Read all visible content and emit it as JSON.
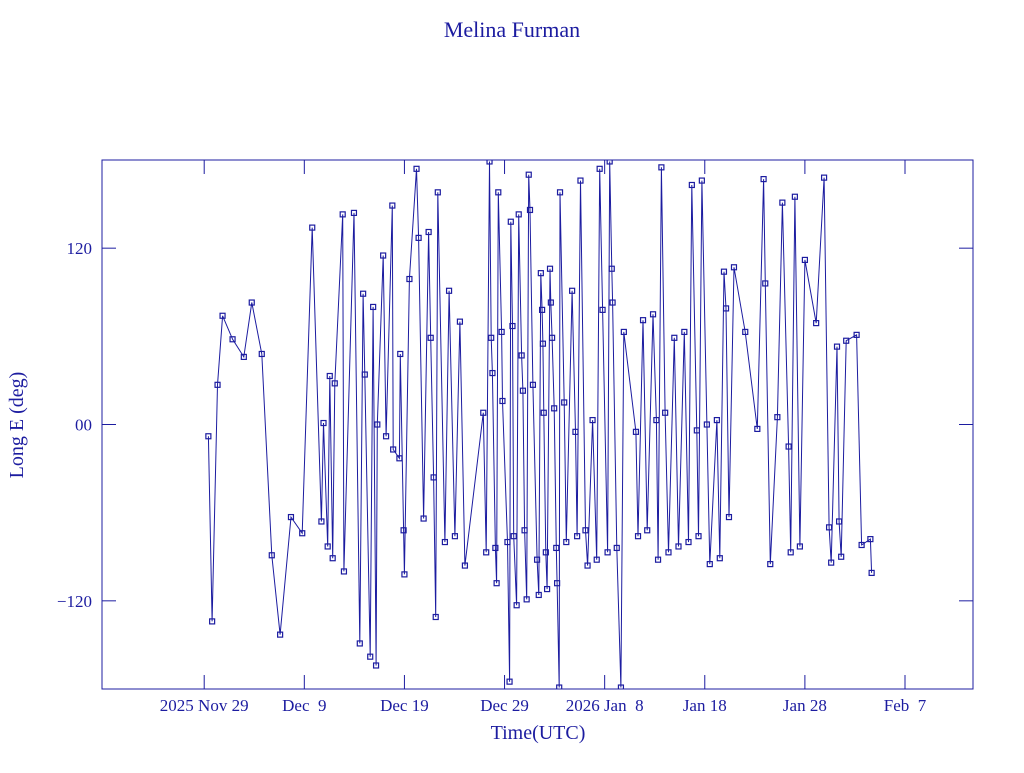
{
  "chart_data": {
    "type": "line",
    "title": "Melina Furman",
    "x_label": "Time(UTC)",
    "y_label": "Long E (deg)",
    "color": "#1c1ca0",
    "marker": "square",
    "x": [
      "2025-11-29T10:00",
      "2025-11-29T19:00",
      "2025-11-30T08:00",
      "2025-11-30T20:00",
      "2025-12-01T20:00",
      "2025-12-02T23:00",
      "2025-12-03T18:00",
      "2025-12-04T18:00",
      "2025-12-05T18:00",
      "2025-12-06T14:00",
      "2025-12-07T16:00",
      "2025-12-08T19:00",
      "2025-12-09T19:00",
      "2025-12-10T17:00",
      "2025-12-10T22:00",
      "2025-12-11T08:00",
      "2025-12-11T13:00",
      "2025-12-11T20:00",
      "2025-12-12T01:00",
      "2025-12-12T20:00",
      "2025-12-12T23:00",
      "2025-12-13T23:00",
      "2025-12-14T13:00",
      "2025-12-14T21:00",
      "2025-12-15T01:00",
      "2025-12-15T14:00",
      "2025-12-15T21:00",
      "2025-12-16T04:00",
      "2025-12-16T07:00",
      "2025-12-16T21:00",
      "2025-12-17T04:00",
      "2025-12-17T19:00",
      "2025-12-17T21:00",
      "2025-12-18T12:00",
      "2025-12-18T14:00",
      "2025-12-18T22:00",
      "2025-12-19T00:00",
      "2025-12-19T12:00",
      "2025-12-20T05:00",
      "2025-12-20T10:00",
      "2025-12-20T22:00",
      "2025-12-21T10:00",
      "2025-12-21T15:00",
      "2025-12-21T22:00",
      "2025-12-22T03:00",
      "2025-12-22T08:00",
      "2025-12-23T01:00",
      "2025-12-23T11:00",
      "2025-12-24T01:00",
      "2025-12-24T13:00",
      "2025-12-25T01:00",
      "2025-12-26T21:00",
      "2025-12-27T04:00",
      "2025-12-27T12:00",
      "2025-12-27T16:00",
      "2025-12-27T19:00",
      "2025-12-28T02:00",
      "2025-12-28T05:00",
      "2025-12-28T09:00",
      "2025-12-28T17:00",
      "2025-12-28T19:00",
      "2025-12-29T07:00",
      "2025-12-29T12:00",
      "2025-12-29T15:00",
      "2025-12-29T19:00",
      "2025-12-29T22:00",
      "2025-12-30T05:00",
      "2025-12-30T10:00",
      "2025-12-30T17:00",
      "2025-12-30T20:00",
      "2025-12-31T00:00",
      "2025-12-31T05:00",
      "2025-12-31T10:00",
      "2025-12-31T13:00",
      "2025-12-31T20:00",
      "2026-01-01T06:00",
      "2026-01-01T10:00",
      "2026-01-01T15:00",
      "2026-01-01T18:00",
      "2026-01-01T20:00",
      "2026-01-01T22:00",
      "2026-01-02T03:00",
      "2026-01-02T06:00",
      "2026-01-02T13:00",
      "2026-01-02T15:00",
      "2026-01-02T18:00",
      "2026-01-02T23:00",
      "2026-01-03T04:00",
      "2026-01-03T06:00",
      "2026-01-03T11:00",
      "2026-01-03T13:00",
      "2026-01-03T23:00",
      "2026-01-04T04:00",
      "2026-01-04T18:00",
      "2026-01-05T02:00",
      "2026-01-05T06:00",
      "2026-01-05T14:00",
      "2026-01-06T02:00",
      "2026-01-06T07:00",
      "2026-01-06T19:00",
      "2026-01-07T05:00",
      "2026-01-07T12:00",
      "2026-01-07T19:00",
      "2026-01-08T07:00",
      "2026-01-08T12:00",
      "2026-01-08T17:00",
      "2026-01-08T19:00",
      "2026-01-09T05:00",
      "2026-01-09T15:00",
      "2026-01-09T22:00",
      "2026-01-11T03:00",
      "2026-01-11T08:00",
      "2026-01-11T20:00",
      "2026-01-12T06:00",
      "2026-01-12T20:00",
      "2026-01-13T04:00",
      "2026-01-13T08:00",
      "2026-01-13T16:00",
      "2026-01-14T01:00",
      "2026-01-14T09:00",
      "2026-01-14T23:00",
      "2026-01-15T09:00",
      "2026-01-15T23:00",
      "2026-01-16T09:00",
      "2026-01-16T17:00",
      "2026-01-17T05:00",
      "2026-01-17T09:00",
      "2026-01-17T17:00",
      "2026-01-18T05:00",
      "2026-01-18T12:00",
      "2026-01-19T05:00",
      "2026-01-19T12:00",
      "2026-01-19T22:00",
      "2026-01-20T03:00",
      "2026-01-20T10:00",
      "2026-01-20T22:00",
      "2026-01-22T01:00",
      "2026-01-23T06:00",
      "2026-01-23T21:00",
      "2026-01-24T01:00",
      "2026-01-24T13:00",
      "2026-01-25T06:00",
      "2026-01-25T18:00",
      "2026-01-26T09:00",
      "2026-01-26T14:00",
      "2026-01-27T00:00",
      "2026-01-27T12:00",
      "2026-01-28T00:00",
      "2026-01-29T03:00",
      "2026-01-29T22:00",
      "2026-01-30T10:00",
      "2026-01-30T15:00",
      "2026-01-31T05:00",
      "2026-01-31T10:00",
      "2026-01-31T15:00",
      "2026-02-01T03:00",
      "2026-02-02T04:00",
      "2026-02-02T16:00",
      "2026-02-03T13:00",
      "2026-02-03T16:00"
    ],
    "values": [
      -8,
      -134,
      27,
      74,
      58,
      46,
      83,
      48,
      -89,
      -143,
      -63,
      -74,
      134,
      -66,
      1,
      -83,
      33,
      -91,
      28,
      143,
      -100,
      144,
      -149,
      89,
      34,
      -158,
      80,
      -164,
      0,
      115,
      -8,
      149,
      -17,
      -23,
      48,
      -72,
      -102,
      99,
      174,
      127,
      -64,
      131,
      59,
      -36,
      -131,
      158,
      -80,
      91,
      -76,
      70,
      -96,
      8,
      -87,
      179,
      59,
      35,
      -84,
      -108,
      158,
      63,
      16,
      -80,
      -175,
      138,
      67,
      -76,
      -123,
      143,
      47,
      23,
      -72,
      -119,
      170,
      146,
      27,
      -92,
      -116,
      103,
      78,
      55,
      8,
      -87,
      -112,
      106,
      83,
      59,
      11,
      -84,
      -108,
      -179,
      158,
      15,
      -80,
      91,
      -5,
      -76,
      166,
      -72,
      -96,
      3,
      -92,
      174,
      78,
      -87,
      179,
      106,
      83,
      -84,
      -179,
      63,
      -5,
      -76,
      71,
      -72,
      75,
      3,
      -92,
      175,
      8,
      -87,
      59,
      -83,
      63,
      -80,
      163,
      -4,
      -76,
      166,
      0,
      -95,
      3,
      -91,
      104,
      79,
      -63,
      107,
      63,
      -3,
      167,
      96,
      -95,
      5,
      151,
      -15,
      -87,
      155,
      -83,
      112,
      69,
      168,
      -70,
      -94,
      53,
      -66,
      -90,
      57,
      61,
      -82,
      -78,
      -101
    ],
    "xlim": [
      "2025-11-18T19:00",
      "2026-02-13T19:00"
    ],
    "xticks": [
      {
        "value": "2025-11-29T00:00",
        "label": "2025 Nov 29"
      },
      {
        "value": "2025-12-09T00:00",
        "label": "Dec  9"
      },
      {
        "value": "2025-12-19T00:00",
        "label": "Dec 19"
      },
      {
        "value": "2025-12-29T00:00",
        "label": "Dec 29"
      },
      {
        "value": "2026-01-08T00:00",
        "label": "2026 Jan  8"
      },
      {
        "value": "2026-01-18T00:00",
        "label": "Jan 18"
      },
      {
        "value": "2026-01-28T00:00",
        "label": "Jan 28"
      },
      {
        "value": "2026-02-07T00:00",
        "label": "Feb  7"
      }
    ],
    "ylim": [
      -180,
      180
    ],
    "yticks": [
      {
        "value": -120,
        "label": "−120"
      },
      {
        "value": 0,
        "label": "00"
      },
      120
    ]
  }
}
